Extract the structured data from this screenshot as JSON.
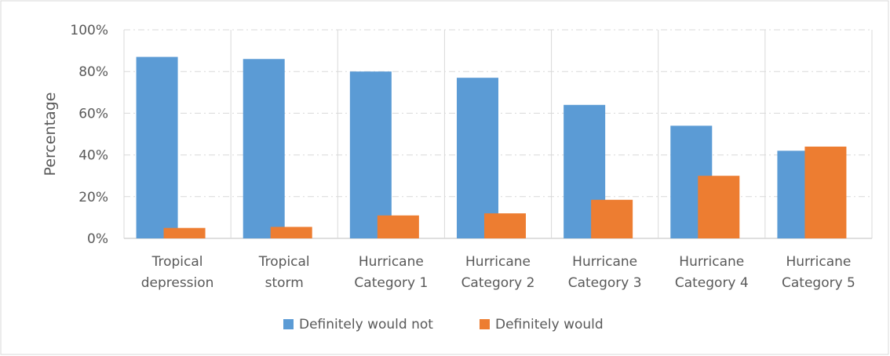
{
  "chart_data": {
    "type": "bar",
    "title": "",
    "xlabel": "",
    "ylabel": "Percentage",
    "ylim": [
      0,
      100
    ],
    "yticks": [
      "0%",
      "20%",
      "40%",
      "60%",
      "80%",
      "100%"
    ],
    "categories": [
      [
        "Tropical",
        "depression"
      ],
      [
        "Tropical",
        "storm"
      ],
      [
        "Hurricane",
        "Category 1"
      ],
      [
        "Hurricane",
        "Category 2"
      ],
      [
        "Hurricane",
        "Category 3"
      ],
      [
        "Hurricane",
        "Category 4"
      ],
      [
        "Hurricane",
        "Category 5"
      ]
    ],
    "series": [
      {
        "name": "Definitely would not",
        "color": "#5B9BD5",
        "values": [
          87,
          86,
          80,
          77,
          64,
          54,
          42
        ]
      },
      {
        "name": "Definitely would",
        "color": "#ED7D31",
        "values": [
          5,
          5.5,
          11,
          12,
          18.5,
          30,
          44
        ]
      }
    ],
    "grid": true,
    "legend": "bottom"
  }
}
